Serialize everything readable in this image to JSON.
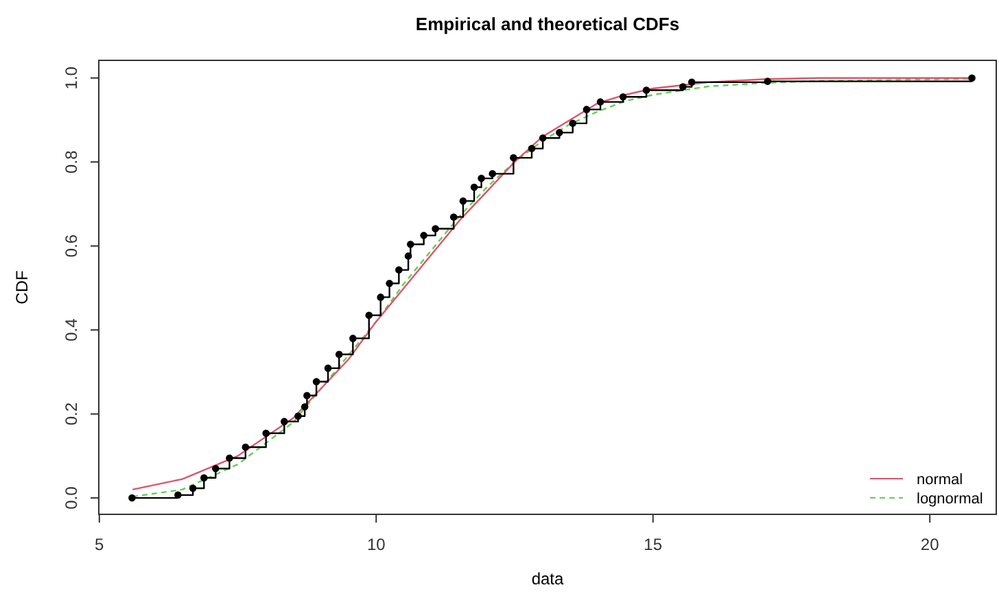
{
  "chart_data": {
    "type": "line",
    "title": "Empirical and theoretical CDFs",
    "xlabel": "data",
    "ylabel": "CDF",
    "xlim": [
      4.99,
      21.2
    ],
    "ylim": [
      -0.039,
      1.042
    ],
    "xticks": [
      5,
      10,
      15,
      20
    ],
    "yticks": [
      {
        "value": 0,
        "label": "0.0"
      },
      {
        "value": 0.2,
        "label": "0.2"
      },
      {
        "value": 0.4,
        "label": "0.4"
      },
      {
        "value": 0.6,
        "label": "0.6"
      },
      {
        "value": 0.8,
        "label": "0.8"
      },
      {
        "value": 1,
        "label": "1.0"
      }
    ],
    "grid": false,
    "legend": "bottom right",
    "series": [
      {
        "type": "step",
        "marker": "circle",
        "color": "#000000",
        "x": [
          5.59,
          6.42,
          6.69,
          6.89,
          7.1,
          7.35,
          7.64,
          8.01,
          8.34,
          8.59,
          8.71,
          8.75,
          8.92,
          9.13,
          9.33,
          9.58,
          9.87,
          10.08,
          10.24,
          10.41,
          10.58,
          10.62,
          10.86,
          11.07,
          11.4,
          11.57,
          11.77,
          11.9,
          12.1,
          12.48,
          12.81,
          13.01,
          13.31,
          13.55,
          13.8,
          14.05,
          14.46,
          14.88,
          15.54,
          15.7,
          17.07,
          20.76
        ],
        "values": [
          0.0,
          0.007,
          0.023,
          0.048,
          0.07,
          0.095,
          0.121,
          0.154,
          0.182,
          0.195,
          0.217,
          0.244,
          0.277,
          0.309,
          0.342,
          0.38,
          0.435,
          0.478,
          0.511,
          0.543,
          0.576,
          0.604,
          0.625,
          0.641,
          0.669,
          0.707,
          0.74,
          0.761,
          0.772,
          0.81,
          0.832,
          0.857,
          0.87,
          0.892,
          0.925,
          0.943,
          0.955,
          0.971,
          0.979,
          0.99,
          0.992,
          1.0
        ]
      },
      {
        "name": "normal",
        "line_style": "solid",
        "color": "#df536b",
        "x": [
          5.6,
          6.5,
          7.5,
          8.5,
          9.5,
          10,
          10.5,
          11,
          11.5,
          12,
          12.5,
          13,
          13.5,
          14,
          14.5,
          15,
          16,
          17,
          18,
          20.8
        ],
        "values": [
          0.02,
          0.045,
          0.1,
          0.19,
          0.33,
          0.42,
          0.5,
          0.58,
          0.66,
          0.73,
          0.8,
          0.86,
          0.9,
          0.94,
          0.96,
          0.975,
          0.99,
          0.997,
          1.0,
          1.0
        ]
      },
      {
        "name": "lognormal",
        "line_style": "dashed",
        "color": "#61d04f",
        "x": [
          5.6,
          6.5,
          7.5,
          8.5,
          9.5,
          10,
          10.5,
          11,
          11.5,
          12,
          12.5,
          13,
          13.5,
          14,
          14.5,
          15,
          16,
          17,
          18,
          20.8
        ],
        "values": [
          0.003,
          0.02,
          0.08,
          0.18,
          0.34,
          0.42,
          0.51,
          0.59,
          0.67,
          0.74,
          0.8,
          0.85,
          0.89,
          0.92,
          0.945,
          0.96,
          0.98,
          0.988,
          0.993,
          0.998
        ]
      }
    ]
  }
}
